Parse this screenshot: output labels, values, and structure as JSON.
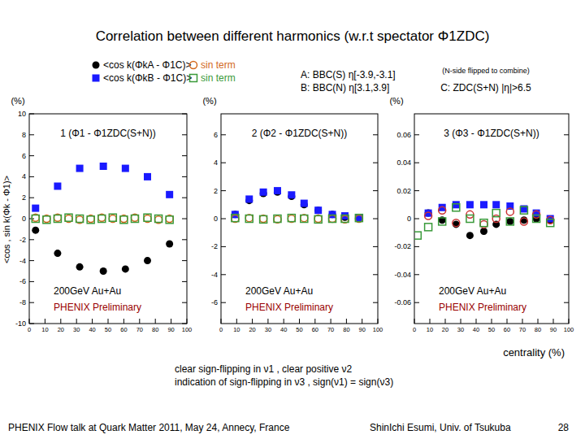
{
  "title": "Correlation between different harmonics (w.r.t spectator Φ1ZDC)",
  "y_label": "<cos , sin k(Φk - Φ1)>",
  "beam_notes": [
    "A: BBC(S) η[-3.9,-3.1]",
    "B: BBC(N) η[3.1,3.9]",
    "(N-side flipped to combine)",
    "C: ZDC(S+N) |η|>6.5"
  ],
  "notes": [
    "clear sign-flipping in ν1 , clear positive ν2",
    "indication of sign-flipping in ν3 , sign(ν1) = sign(ν3)"
  ],
  "footer": {
    "talk": "PHENIX Flow talk at Quark Matter 2011, May 24, Annecy, France",
    "author": "ShinIchi Esumi, Univ. of Tsukuba",
    "page": 28
  },
  "chart_data": [
    {
      "type": "scatter",
      "title": "1 (Φ1 - Φ1ZDC(S+N))",
      "y_label": "(%)",
      "annotations": [
        "200GeV Au+Au",
        "PHENIX Preliminary"
      ],
      "xlim": [
        0,
        100
      ],
      "xticks": [
        0,
        10,
        20,
        30,
        40,
        50,
        60,
        70,
        80,
        90,
        100
      ],
      "ylim": [
        -10,
        10
      ],
      "yticks": [
        -10,
        -8,
        -6,
        -4,
        -2,
        0,
        2,
        4,
        6,
        8,
        10
      ],
      "series": [
        {
          "name": "<cos k(ΦkA - Φ1C)>",
          "color": "#000000",
          "marker": "circle",
          "x": [
            4,
            18,
            32,
            47,
            61,
            75,
            89
          ],
          "values": [
            -1.1,
            -3.3,
            -4.6,
            -5.0,
            -4.8,
            -4.0,
            -2.4
          ]
        },
        {
          "name": "<cos k(ΦkB - Φ1C)>",
          "color": "#1a1aff",
          "marker": "square",
          "x": [
            4,
            18,
            32,
            47,
            61,
            75,
            89
          ],
          "values": [
            1.0,
            3.1,
            4.8,
            5.0,
            4.8,
            4.0,
            2.3
          ]
        },
        {
          "name": "sin term",
          "color": "#d2691e",
          "marker": "open_circle",
          "x": [
            4,
            11,
            18,
            25,
            32,
            39,
            46,
            53,
            60,
            67,
            75,
            82,
            89
          ],
          "values": [
            0.1,
            0.0,
            0.1,
            0.0,
            -0.1,
            0.0,
            0.1,
            0.0,
            0.0,
            0.1,
            0.0,
            -0.1,
            0.0
          ]
        },
        {
          "name": "sin term",
          "color": "#3a9a3a",
          "marker": "open_square",
          "x": [
            4,
            11,
            18,
            25,
            32,
            39,
            46,
            53,
            60,
            67,
            75,
            82,
            89
          ],
          "values": [
            0.0,
            -0.1,
            0.0,
            0.1,
            0.0,
            -0.1,
            0.0,
            0.1,
            -0.1,
            0.0,
            0.1,
            0.0,
            -0.1
          ]
        }
      ]
    },
    {
      "type": "scatter",
      "title": "2 (Φ2 - Φ1ZDC(S+N))",
      "y_label": "(%)",
      "annotations": [
        "200GeV Au+Au",
        "PHENIX Preliminary"
      ],
      "xlim": [
        0,
        100
      ],
      "xticks": [
        0,
        10,
        20,
        30,
        40,
        50,
        60,
        70,
        80,
        90,
        100
      ],
      "ylim": [
        -7.5,
        7.5
      ],
      "yticks": [
        -6,
        -4,
        -2,
        0,
        2,
        4,
        6
      ],
      "series": [
        {
          "name": "<cos k(ΦkA - Φ1C)>",
          "color": "#000000",
          "marker": "circle",
          "x": [
            9,
            18,
            27,
            36,
            45,
            53,
            62,
            71,
            79,
            88
          ],
          "values": [
            0.3,
            1.3,
            1.8,
            1.9,
            1.6,
            1.0,
            0.6,
            0.3,
            0.1,
            0.0
          ]
        },
        {
          "name": "<cos k(ΦkB - Φ1C)>",
          "color": "#1a1aff",
          "marker": "square",
          "x": [
            9,
            18,
            27,
            36,
            45,
            53,
            62,
            71,
            79,
            88
          ],
          "values": [
            0.3,
            1.4,
            1.9,
            2.0,
            1.7,
            1.1,
            0.6,
            0.3,
            0.2,
            0.05
          ]
        },
        {
          "name": "sin term",
          "color": "#d2691e",
          "marker": "open_circle",
          "x": [
            9,
            18,
            27,
            36,
            45,
            53,
            62,
            71,
            79,
            88
          ],
          "values": [
            0.0,
            0.05,
            0.0,
            -0.05,
            0.0,
            0.05,
            0.0,
            0.0,
            -0.05,
            0.0
          ]
        },
        {
          "name": "sin term",
          "color": "#3a9a3a",
          "marker": "open_square",
          "x": [
            9,
            18,
            27,
            36,
            45,
            53,
            62,
            71,
            79,
            88
          ],
          "values": [
            0.05,
            0.0,
            -0.05,
            0.0,
            0.05,
            0.0,
            -0.05,
            0.0,
            0.0,
            0.05
          ]
        }
      ]
    },
    {
      "type": "scatter",
      "title": "3 (Φ3 - Φ1ZDC(S+N))",
      "y_label": "(%)",
      "x_label": "centrality (%)",
      "annotations": [
        "200GeV Au+Au",
        "PHENIX Preliminary"
      ],
      "xlim": [
        0,
        100
      ],
      "xticks": [
        0,
        10,
        20,
        30,
        40,
        50,
        60,
        70,
        80,
        90,
        100
      ],
      "ylim": [
        -0.075,
        0.075
      ],
      "yticks": [
        -0.06,
        -0.04,
        -0.02,
        0,
        0.02,
        0.04,
        0.06
      ],
      "series": [
        {
          "name": "<cos k(ΦkA - Φ1C)>",
          "color": "#000000",
          "marker": "circle",
          "x": [
            9,
            18,
            27,
            36,
            45,
            53,
            62,
            71,
            79,
            88
          ],
          "values": [
            0.004,
            -0.001,
            -0.004,
            -0.012,
            -0.009,
            -0.004,
            -0.002,
            -0.001,
            0.0,
            -0.001
          ]
        },
        {
          "name": "<cos k(ΦkB - Φ1C)>",
          "color": "#1a1aff",
          "marker": "square",
          "x": [
            9,
            18,
            27,
            36,
            45,
            53,
            62,
            71,
            79,
            88
          ],
          "values": [
            0.004,
            0.008,
            0.01,
            0.01,
            0.01,
            0.01,
            0.009,
            0.007,
            0.004,
            0.0
          ]
        },
        {
          "name": "sin term",
          "color": "#cc3333",
          "marker": "open_circle",
          "x": [
            9,
            18,
            27,
            36,
            45,
            53,
            62,
            71,
            79,
            88
          ],
          "values": [
            0.002,
            0.006,
            -0.003,
            0.003,
            -0.004,
            0.0,
            0.005,
            -0.002,
            0.003,
            -0.001
          ]
        },
        {
          "name": "sin term",
          "color": "#3a9a3a",
          "marker": "open_square",
          "x": [
            2,
            9,
            18,
            27,
            36,
            45,
            53,
            62,
            71,
            79,
            88
          ],
          "values": [
            -0.012,
            -0.006,
            -0.002,
            0.008,
            0.0,
            -0.003,
            0.004,
            -0.002,
            0.006,
            0.0,
            -0.003
          ]
        }
      ]
    }
  ]
}
